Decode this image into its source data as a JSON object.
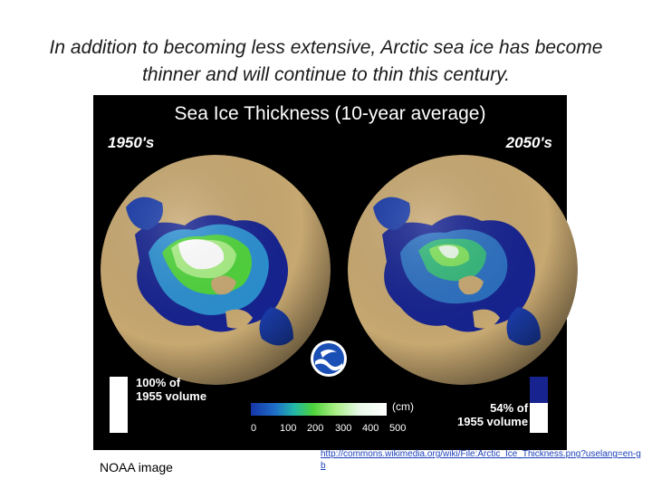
{
  "caption": {
    "line1": "In addition to becoming less extensive, Arctic sea ice has become",
    "line2": "thinner and will continue to thin this century."
  },
  "figure": {
    "title": "Sea Ice Thickness (10-year average)",
    "left_label": "1950's",
    "right_label": "2050's",
    "left_volume": {
      "line1": "100% of",
      "line2": "1955 volume"
    },
    "right_volume": {
      "line1": "54% of",
      "line2": "1955 volume"
    },
    "right_volume_fraction": 0.54,
    "scale_unit": "(cm)",
    "scale_ticks": [
      "0",
      "100",
      "200",
      "300",
      "400",
      "500"
    ],
    "colors": {
      "land": "#c7a871",
      "ocean_deep": "#16238f",
      "ice_thin": "#2aa8a8",
      "ice_mid": "#4ed33a",
      "ice_thick": "#ffffff"
    }
  },
  "footer": {
    "credit": "NOAA image",
    "link": "http://commons.wikimedia.org/wiki/File:Arctic_Ice_Thickness.png?uselang=en-gb"
  }
}
